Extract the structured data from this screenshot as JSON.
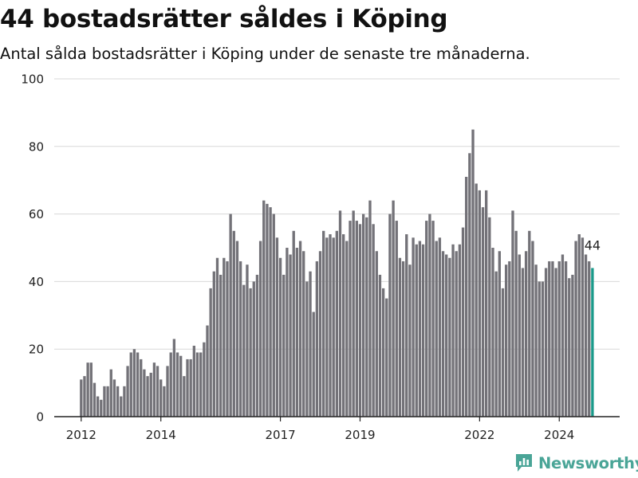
{
  "header": {
    "title": "44 bostadsrätter såldes i Köping",
    "subtitle": "Antal sålda bostadsrätter i Köping under de senaste tre månaderna."
  },
  "brand": {
    "name": "Newsworthy",
    "icon": "newsworthy-logo-icon",
    "color": "#4aa597"
  },
  "colors": {
    "bar": "#737278",
    "highlight": "#1a9a8a",
    "grid": "#d8d8d8",
    "axis": "#222222"
  },
  "chart_data": {
    "type": "bar",
    "title": "44 bostadsrätter såldes i Köping",
    "subtitle": "Antal sålda bostadsrätter i Köping under de senaste tre månaderna.",
    "xlabel": "",
    "ylabel": "",
    "ylim": [
      0,
      100
    ],
    "yticks": [
      0,
      20,
      40,
      60,
      80,
      100
    ],
    "grid": true,
    "x_start": "2012-01",
    "x_end": "2024-12",
    "xticks": [
      {
        "label": "2012",
        "x": "2012-01"
      },
      {
        "label": "2014",
        "x": "2014-01"
      },
      {
        "label": "2017",
        "x": "2017-01"
      },
      {
        "label": "2019",
        "x": "2019-01"
      },
      {
        "label": "2022",
        "x": "2022-01"
      },
      {
        "label": "2024",
        "x": "2024-01"
      }
    ],
    "series": [
      {
        "start": "2012-01",
        "values": [
          11,
          12,
          16,
          16,
          10,
          6,
          5,
          9,
          9,
          14,
          11,
          9,
          6,
          9,
          15,
          19,
          20,
          19,
          17,
          14,
          12,
          13,
          16,
          15,
          11,
          9,
          15,
          19,
          23,
          19,
          18,
          12,
          17,
          17,
          21,
          19,
          19,
          22,
          27,
          38,
          43,
          47,
          42,
          47,
          46,
          60,
          55,
          52,
          46,
          39,
          45,
          38,
          40,
          42,
          52,
          64,
          63,
          62,
          60,
          53,
          47,
          42,
          50,
          48,
          55,
          50,
          52,
          49,
          40,
          43,
          31,
          46,
          49,
          55,
          53,
          54,
          53,
          55,
          61,
          54,
          52,
          58,
          61,
          58,
          57,
          60,
          59,
          64,
          57,
          49,
          42,
          38,
          35,
          60,
          64,
          58,
          47,
          46,
          54,
          45,
          53,
          51,
          52,
          51,
          58,
          60,
          58,
          52,
          53,
          49,
          48,
          47,
          51,
          49,
          51,
          56,
          71,
          78,
          85,
          69,
          67,
          62,
          67,
          59,
          50,
          43,
          49,
          38,
          45,
          46,
          61,
          55,
          48,
          44,
          49,
          55,
          52,
          45,
          40,
          40,
          44,
          46,
          46,
          44,
          46,
          48,
          46,
          41,
          42,
          52,
          54,
          53,
          48,
          46,
          44
        ],
        "last_value": 44,
        "last_value_label": "44"
      }
    ]
  }
}
